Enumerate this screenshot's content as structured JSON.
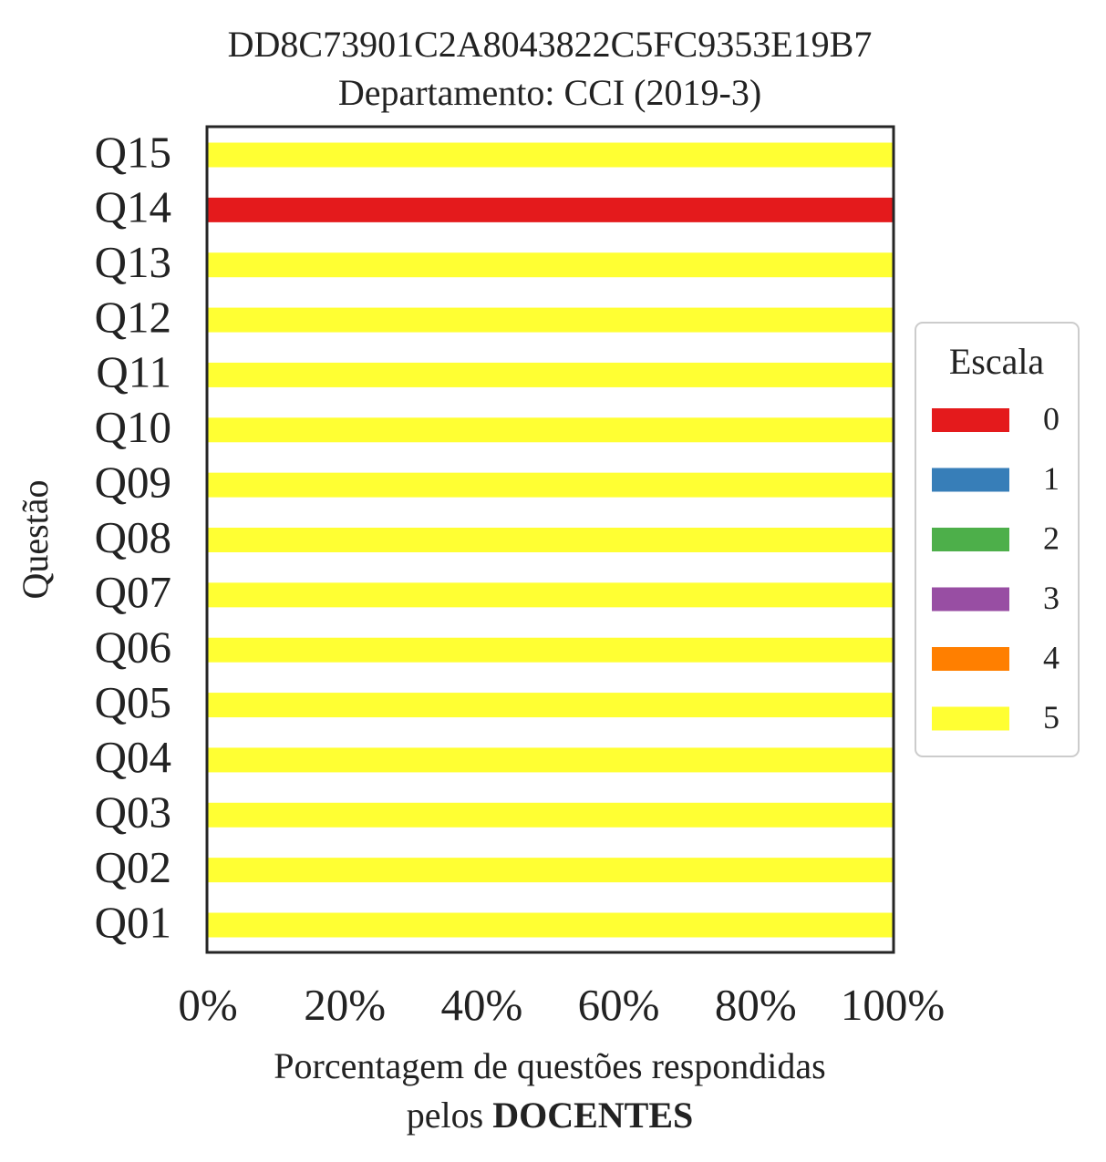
{
  "chart_data": {
    "type": "bar",
    "orientation": "horizontal",
    "stacked": true,
    "title": "DD8C73901C2A8043822C5FC9353E19B7",
    "subtitle": "Departamento: CCI (2019-3)",
    "xlabel_line1": "Porcentagem de questões respondidas",
    "xlabel_line2_prefix": "pelos ",
    "xlabel_line2_bold": "DOCENTES",
    "ylabel": "Questão",
    "xlim": [
      0,
      100
    ],
    "xticks": [
      "0%",
      "20%",
      "40%",
      "60%",
      "80%",
      "100%"
    ],
    "categories": [
      "Q01",
      "Q02",
      "Q03",
      "Q04",
      "Q05",
      "Q06",
      "Q07",
      "Q08",
      "Q09",
      "Q10",
      "Q11",
      "Q12",
      "Q13",
      "Q14",
      "Q15"
    ],
    "series": [
      {
        "name": "0",
        "color": "#e41a1c",
        "values": [
          0,
          0,
          0,
          0,
          0,
          0,
          0,
          0,
          0,
          0,
          0,
          0,
          0,
          100,
          0
        ]
      },
      {
        "name": "1",
        "color": "#377eb8",
        "values": [
          0,
          0,
          0,
          0,
          0,
          0,
          0,
          0,
          0,
          0,
          0,
          0,
          0,
          0,
          0
        ]
      },
      {
        "name": "2",
        "color": "#4daf4a",
        "values": [
          0,
          0,
          0,
          0,
          0,
          0,
          0,
          0,
          0,
          0,
          0,
          0,
          0,
          0,
          0
        ]
      },
      {
        "name": "3",
        "color": "#984ea3",
        "values": [
          0,
          0,
          0,
          0,
          0,
          0,
          0,
          0,
          0,
          0,
          0,
          0,
          0,
          0,
          0
        ]
      },
      {
        "name": "4",
        "color": "#ff7f00",
        "values": [
          0,
          0,
          0,
          0,
          0,
          0,
          0,
          0,
          0,
          0,
          0,
          0,
          0,
          0,
          0
        ]
      },
      {
        "name": "5",
        "color": "#ffff33",
        "values": [
          100,
          100,
          100,
          100,
          100,
          100,
          100,
          100,
          100,
          100,
          100,
          100,
          100,
          0,
          100
        ]
      }
    ],
    "legend": {
      "title": "Escala",
      "position": "right"
    },
    "grid": false
  }
}
